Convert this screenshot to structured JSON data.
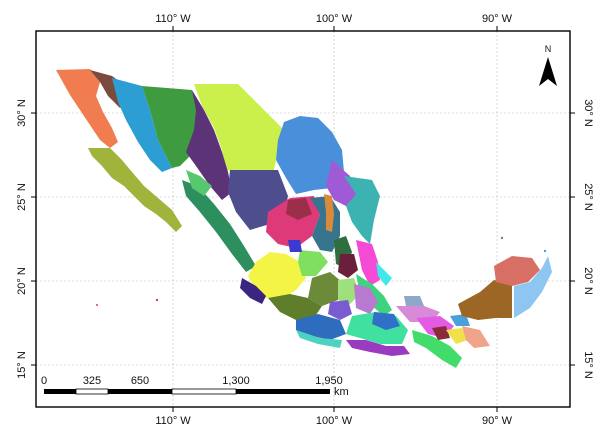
{
  "graticule": {
    "lon_top": [
      "110° W",
      "100° W",
      "90° W"
    ],
    "lon_bottom": [
      "110° W",
      "100° W",
      "90° W"
    ],
    "lat_left": [
      "30° N",
      "25° N",
      "20° N",
      "15° N"
    ],
    "lat_right": [
      "30° N",
      "25° N",
      "20° N",
      "15° N"
    ]
  },
  "north_arrow": {
    "label": "N"
  },
  "scale_bar": {
    "ticks": [
      "0",
      "325",
      "650",
      "1,300",
      "1,950"
    ],
    "unit": "km"
  },
  "colors": {
    "baja_norte": "#f07c4f",
    "baja_sur": "#a0b43c",
    "sonora": "#3f9b3f",
    "chihuahua": "#ccf04b",
    "coahuila": "#4a8fd9",
    "sinaloa": "#5c3377",
    "durango": "#4e4e8f",
    "yucatan_east": "#8dc7f1",
    "campeche": "#9c6624",
    "yucatan_north": "#d76f64"
  }
}
